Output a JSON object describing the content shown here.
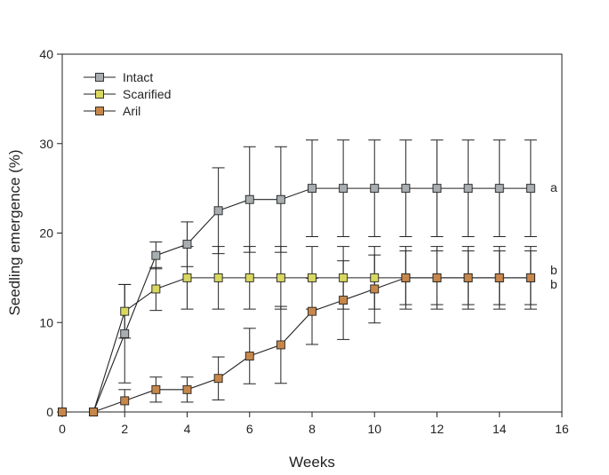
{
  "chart_data": {
    "type": "line",
    "title": "",
    "xlabel": "Weeks",
    "ylabel": "Seedling emergence (%)",
    "xlim": [
      0,
      16
    ],
    "ylim": [
      0,
      40
    ],
    "xticks": [
      0,
      2,
      4,
      6,
      8,
      10,
      12,
      14,
      16
    ],
    "yticks": [
      0,
      10,
      20,
      30,
      40
    ],
    "grid": false,
    "legend_position": "top-left",
    "x": [
      0,
      1,
      2,
      3,
      4,
      5,
      6,
      7,
      8,
      9,
      10,
      11,
      12,
      13,
      14,
      15
    ],
    "series": [
      {
        "name": "Intact",
        "color": "#a8adb0",
        "marker": "square",
        "values": [
          0,
          0,
          8.75,
          17.5,
          18.75,
          22.5,
          23.75,
          23.75,
          25,
          25,
          25,
          25,
          25,
          25,
          25,
          25
        ],
        "errors": [
          0,
          0,
          5.5,
          1.5,
          2.5,
          4.8,
          5.9,
          5.9,
          5.4,
          5.4,
          5.4,
          5.4,
          5.4,
          5.4,
          5.4,
          5.4
        ],
        "significance": "a"
      },
      {
        "name": "Scarified",
        "color": "#d8d860",
        "marker": "square",
        "values": [
          0,
          0,
          11.25,
          13.75,
          15,
          15,
          15,
          15,
          15,
          15,
          15,
          15,
          15,
          15,
          15,
          15
        ],
        "errors": [
          0,
          0,
          3.0,
          2.4,
          3.5,
          3.5,
          3.5,
          3.5,
          3.5,
          3.5,
          3.5,
          3.5,
          3.5,
          3.5,
          3.5,
          3.5
        ],
        "significance": "b"
      },
      {
        "name": "Aril",
        "color": "#c8874a",
        "marker": "square",
        "values": [
          0,
          0,
          1.25,
          2.5,
          2.5,
          3.75,
          6.25,
          7.5,
          11.25,
          12.5,
          13.75,
          15,
          15,
          15,
          15,
          15
        ],
        "errors": [
          0,
          0,
          1.25,
          1.4,
          1.4,
          2.4,
          3.1,
          4.3,
          3.7,
          4.4,
          3.8,
          3.0,
          3.0,
          3.0,
          3.0,
          3.0
        ],
        "significance": "b"
      }
    ]
  }
}
